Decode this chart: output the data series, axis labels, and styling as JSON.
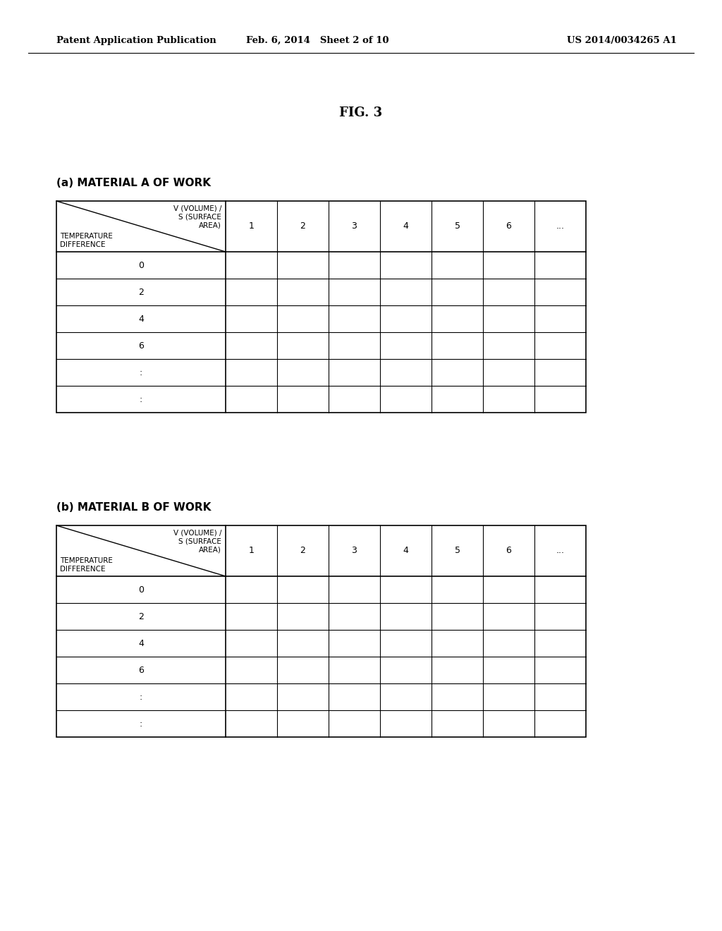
{
  "bg_color": "#ffffff",
  "header_left": "Patent Application Publication",
  "header_mid": "Feb. 6, 2014   Sheet 2 of 10",
  "header_right": "US 2014/0034265 A1",
  "fig_title": "FIG. 3",
  "table_a_label": "(a) MATERIAL A OF WORK",
  "table_b_label": "(b) MATERIAL B OF WORK",
  "col_header_text": "V (VOLUME) /\nS (SURFACE\nAREA)",
  "row_header_line1": "TEMPERATURE",
  "row_header_line2": "DIFFERENCE",
  "col_values": [
    "1",
    "2",
    "3",
    "4",
    "5",
    "6",
    "•••"
  ],
  "row_values": [
    "0",
    "2",
    "4",
    "6",
    ":",
    ":"
  ],
  "n_data_cols": 7,
  "n_data_rows": 6
}
